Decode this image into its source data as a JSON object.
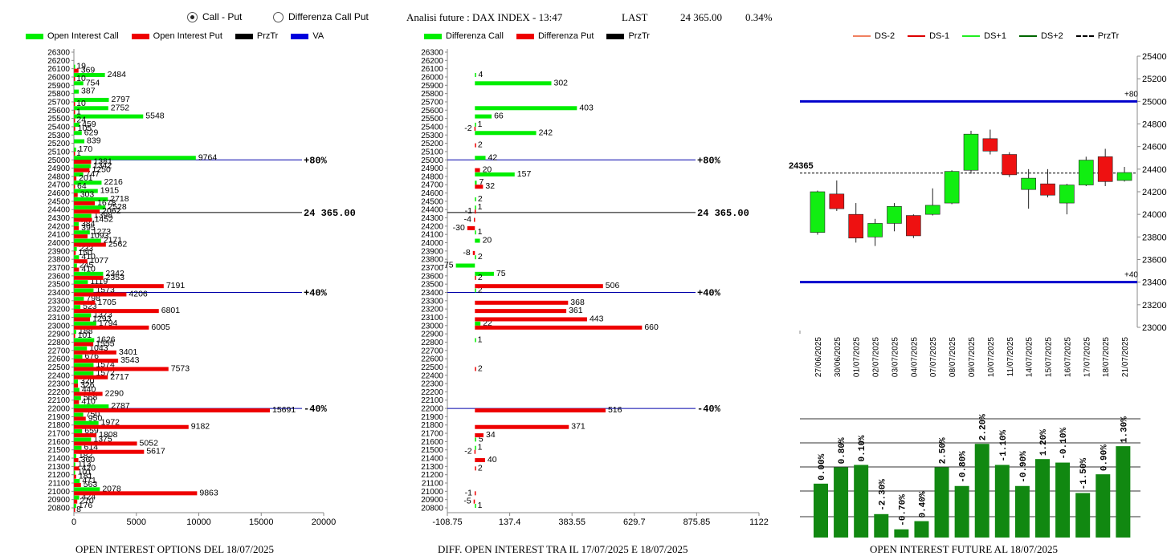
{
  "header": {
    "radio_call_put": "Call - Put",
    "radio_diff": "Differenza Call Put",
    "analysis_title": "Analisi future : DAX INDEX - 13:47",
    "last_label": "LAST",
    "last_value": "24 365.00",
    "last_change": "0.34%"
  },
  "legends": {
    "left": [
      {
        "label": "Open Interest Call",
        "color": "#00ee00",
        "kind": "box"
      },
      {
        "label": "Open Interest Put",
        "color": "#ee0000",
        "kind": "box"
      },
      {
        "label": "PrzTr",
        "color": "#000000",
        "kind": "box"
      },
      {
        "label": "VA",
        "color": "#0000dd",
        "kind": "box"
      }
    ],
    "middle": [
      {
        "label": "Differenza Call",
        "color": "#00ee00",
        "kind": "box"
      },
      {
        "label": "Differenza Put",
        "color": "#ee0000",
        "kind": "box"
      },
      {
        "label": "PrzTr",
        "color": "#000000",
        "kind": "box"
      }
    ],
    "right": [
      {
        "label": "DS-2",
        "color": "#f08060",
        "kind": "line"
      },
      {
        "label": "DS-1",
        "color": "#dd0000",
        "kind": "line"
      },
      {
        "label": "DS+1",
        "color": "#22ee22",
        "kind": "line"
      },
      {
        "label": "DS+2",
        "color": "#006600",
        "kind": "line"
      },
      {
        "label": "PrzTr",
        "color": "#000000",
        "kind": "dash"
      }
    ]
  },
  "footers": {
    "left": "OPEN INTEREST OPTIONS DEL 18/07/2025",
    "middle": "DIFF. OPEN INTEREST TRA IL 17/07/2025 E 18/07/2025",
    "right": "OPEN INTEREST FUTURE AL 18/07/2025"
  },
  "chart_data": [
    {
      "type": "bar",
      "orientation": "horizontal",
      "y_categories": [
        26300,
        26200,
        26100,
        26000,
        25900,
        25800,
        25700,
        25600,
        25500,
        25400,
        25300,
        25200,
        25100,
        25000,
        24900,
        24800,
        24700,
        24600,
        24500,
        24400,
        24300,
        24200,
        24100,
        24000,
        23900,
        23800,
        23700,
        23600,
        23500,
        23400,
        23300,
        23200,
        23100,
        23000,
        22900,
        22800,
        22700,
        22600,
        22500,
        22400,
        22300,
        22200,
        22100,
        22000,
        21900,
        21800,
        21700,
        21600,
        21500,
        21400,
        21300,
        21200,
        21100,
        21000,
        20900,
        20800
      ],
      "xlim": [
        0,
        20000
      ],
      "xticks": [
        "0",
        "5000",
        "10000",
        "15000",
        "20000"
      ],
      "series": [
        {
          "name": "Open Interest Call",
          "color": "#00ee00",
          "points": [
            [
              26100,
              19
            ],
            [
              26000,
              2484
            ],
            [
              25900,
              754
            ],
            [
              25800,
              387
            ],
            [
              25700,
              2797
            ],
            [
              25600,
              2752
            ],
            [
              25500,
              5548
            ],
            [
              25400,
              459
            ],
            [
              25300,
              629
            ],
            [
              25200,
              839
            ],
            [
              25100,
              170
            ],
            [
              25000,
              9764
            ],
            [
              24900,
              1342
            ],
            [
              24800,
              747
            ],
            [
              24700,
              2216
            ],
            [
              24600,
              1915
            ],
            [
              24500,
              2718
            ],
            [
              24400,
              2528
            ],
            [
              24300,
              1398
            ],
            [
              24200,
              384
            ],
            [
              24100,
              1273
            ],
            [
              24000,
              2171
            ],
            [
              23900,
              233
            ],
            [
              23800,
              410
            ],
            [
              23700,
              245
            ],
            [
              23600,
              2342
            ],
            [
              23500,
              1119
            ],
            [
              23400,
              1573
            ],
            [
              23300,
              798
            ],
            [
              23200,
              523
            ],
            [
              23100,
              1373
            ],
            [
              23000,
              1794
            ],
            [
              22900,
              188
            ],
            [
              22800,
              1626
            ],
            [
              22700,
              1043
            ],
            [
              22600,
              676
            ],
            [
              22500,
              1574
            ],
            [
              22400,
              1572
            ],
            [
              22300,
              320
            ],
            [
              22200,
              440
            ],
            [
              22100,
              568
            ],
            [
              22000,
              2787
            ],
            [
              21900,
              750
            ],
            [
              21800,
              1972
            ],
            [
              21700,
              659
            ],
            [
              21600,
              1375
            ],
            [
              21500,
              614
            ],
            [
              21400,
              182
            ],
            [
              21300,
              113
            ],
            [
              21200,
              101
            ],
            [
              21100,
              471
            ],
            [
              21000,
              2078
            ],
            [
              20900,
              424
            ],
            [
              20800,
              176
            ]
          ]
        },
        {
          "name": "Open Interest Put",
          "color": "#ee0000",
          "points": [
            [
              26100,
              369
            ],
            [
              26000,
              10
            ],
            [
              25700,
              10
            ],
            [
              25600,
              1
            ],
            [
              25500,
              24
            ],
            [
              25400,
              105
            ],
            [
              25100,
              1
            ],
            [
              25000,
              1381
            ],
            [
              24900,
              1250
            ],
            [
              24800,
              201
            ],
            [
              24700,
              64
            ],
            [
              24600,
              303
            ],
            [
              24500,
              1678
            ],
            [
              24400,
              2062
            ],
            [
              24300,
              1452
            ],
            [
              24200,
              395
            ],
            [
              24100,
              1093
            ],
            [
              24000,
              2562
            ],
            [
              23900,
              150
            ],
            [
              23800,
              1077
            ],
            [
              23700,
              410
            ],
            [
              23600,
              2353
            ],
            [
              23500,
              7191
            ],
            [
              23400,
              4206
            ],
            [
              23300,
              1705
            ],
            [
              23200,
              6801
            ],
            [
              23100,
              1293
            ],
            [
              23000,
              6005
            ],
            [
              22900,
              101
            ],
            [
              22800,
              1555
            ],
            [
              22700,
              3401
            ],
            [
              22600,
              3543
            ],
            [
              22500,
              7573
            ],
            [
              22400,
              2717
            ],
            [
              22300,
              326
            ],
            [
              22200,
              2290
            ],
            [
              22100,
              410
            ],
            [
              22000,
              15691
            ],
            [
              21900,
              950
            ],
            [
              21800,
              9182
            ],
            [
              21700,
              1808
            ],
            [
              21600,
              5052
            ],
            [
              21500,
              5617
            ],
            [
              21400,
              360
            ],
            [
              21300,
              420
            ],
            [
              21200,
              181
            ],
            [
              21100,
              563
            ],
            [
              21000,
              9863
            ],
            [
              20900,
              270
            ],
            [
              20800,
              8
            ]
          ]
        }
      ],
      "reference_lines": [
        {
          "y": 25000,
          "label": "+80%",
          "color": "#0000aa"
        },
        {
          "y": 24365,
          "label": "24 365.00",
          "color": "#000000"
        },
        {
          "y": 23400,
          "label": "+40%",
          "color": "#0000aa"
        },
        {
          "y": 22000,
          "label": "-40%",
          "color": "#0000aa"
        }
      ]
    },
    {
      "type": "bar",
      "orientation": "horizontal",
      "y_categories": [
        26300,
        26200,
        26100,
        26000,
        25900,
        25800,
        25700,
        25600,
        25500,
        25400,
        25300,
        25200,
        25100,
        25000,
        24900,
        24800,
        24700,
        24600,
        24500,
        24400,
        24300,
        24200,
        24100,
        24000,
        23900,
        23800,
        23700,
        23600,
        23500,
        23400,
        23300,
        23200,
        23100,
        23000,
        22900,
        22800,
        22700,
        22600,
        22500,
        22400,
        22300,
        22200,
        22100,
        22000,
        21900,
        21800,
        21700,
        21600,
        21500,
        21400,
        21300,
        21200,
        21100,
        21000,
        20900,
        20800
      ],
      "xlim": [
        -108.75,
        1122
      ],
      "xticks": [
        "-108.75",
        "137.4",
        "383.55",
        "629.7",
        "875.85",
        "1122"
      ],
      "series": [
        {
          "name": "Differenza Call",
          "color": "#00ee00",
          "points": [
            [
              26000,
              4
            ],
            [
              25900,
              302
            ],
            [
              25600,
              403
            ],
            [
              25500,
              66
            ],
            [
              25400,
              1
            ],
            [
              25300,
              242
            ],
            [
              25000,
              42
            ],
            [
              24800,
              157
            ],
            [
              24700,
              7
            ],
            [
              24500,
              2
            ],
            [
              24400,
              1
            ],
            [
              24100,
              1
            ],
            [
              24000,
              20
            ],
            [
              23800,
              2
            ],
            [
              23700,
              -75
            ],
            [
              23600,
              75
            ],
            [
              23400,
              2
            ],
            [
              23000,
              22
            ],
            [
              22800,
              1
            ],
            [
              21600,
              5
            ],
            [
              21500,
              1
            ],
            [
              20800,
              1
            ]
          ]
        },
        {
          "name": "Differenza Put",
          "color": "#ee0000",
          "points": [
            [
              25400,
              -2
            ],
            [
              25200,
              2
            ],
            [
              24900,
              20
            ],
            [
              24700,
              32
            ],
            [
              24400,
              -1
            ],
            [
              24300,
              -4
            ],
            [
              24200,
              -30
            ],
            [
              23900,
              -8
            ],
            [
              23600,
              2
            ],
            [
              23500,
              506
            ],
            [
              23300,
              368
            ],
            [
              23200,
              361
            ],
            [
              23100,
              443
            ],
            [
              23000,
              660
            ],
            [
              22500,
              2
            ],
            [
              22000,
              516
            ],
            [
              21800,
              371
            ],
            [
              21700,
              34
            ],
            [
              21500,
              -2
            ],
            [
              21400,
              40
            ],
            [
              21300,
              2
            ],
            [
              21000,
              -1
            ],
            [
              20900,
              -5
            ]
          ]
        }
      ],
      "reference_lines": [
        {
          "y": 25000,
          "label": "+80%",
          "color": "#0000aa"
        },
        {
          "y": 24365,
          "label": "24 365.00",
          "color": "#000000"
        },
        {
          "y": 23400,
          "label": "+40%",
          "color": "#0000aa"
        },
        {
          "y": 22000,
          "label": "-40%",
          "color": "#0000aa"
        }
      ]
    },
    {
      "type": "candlestick",
      "ylim": [
        23000,
        25400
      ],
      "yticks": [
        23000,
        23200,
        23400,
        23600,
        23800,
        24000,
        24200,
        24400,
        24600,
        24800,
        25000,
        25200,
        25400
      ],
      "dates": [
        "27/06/2025",
        "30/06/2025",
        "01/07/2025",
        "02/07/2025",
        "03/07/2025",
        "04/07/2025",
        "07/07/2025",
        "08/07/2025",
        "09/07/2025",
        "10/07/2025",
        "11/07/2025",
        "14/07/2025",
        "15/07/2025",
        "16/07/2025",
        "17/07/2025",
        "18/07/2025",
        "21/07/2025"
      ],
      "ohlc": [
        {
          "o": 23840,
          "h": 24210,
          "l": 23820,
          "c": 24200
        },
        {
          "o": 24180,
          "h": 24300,
          "l": 24030,
          "c": 24050
        },
        {
          "o": 24000,
          "h": 24100,
          "l": 23750,
          "c": 23790
        },
        {
          "o": 23800,
          "h": 23960,
          "l": 23720,
          "c": 23920
        },
        {
          "o": 23920,
          "h": 24100,
          "l": 23850,
          "c": 24070
        },
        {
          "o": 23990,
          "h": 24000,
          "l": 23790,
          "c": 23810
        },
        {
          "o": 24000,
          "h": 24230,
          "l": 23990,
          "c": 24080
        },
        {
          "o": 24100,
          "h": 24390,
          "l": 24090,
          "c": 24380
        },
        {
          "o": 24390,
          "h": 24740,
          "l": 24360,
          "c": 24710
        },
        {
          "o": 24670,
          "h": 24750,
          "l": 24530,
          "c": 24560
        },
        {
          "o": 24530,
          "h": 24550,
          "l": 24330,
          "c": 24350
        },
        {
          "o": 24220,
          "h": 24400,
          "l": 24050,
          "c": 24320
        },
        {
          "o": 24270,
          "h": 24400,
          "l": 24150,
          "c": 24170
        },
        {
          "o": 24100,
          "h": 24270,
          "l": 24000,
          "c": 24260
        },
        {
          "o": 24260,
          "h": 24510,
          "l": 24250,
          "c": 24480
        },
        {
          "o": 24510,
          "h": 24580,
          "l": 24250,
          "c": 24290
        },
        {
          "o": 24300,
          "h": 24420,
          "l": 24290,
          "c": 24370
        }
      ],
      "hlines": [
        {
          "y": 25000,
          "label": "+80",
          "color": "#0000cc"
        },
        {
          "y": 24365,
          "label": "24365",
          "color": "#000000",
          "dashed": true
        },
        {
          "y": 23400,
          "label": "+40",
          "color": "#0000cc"
        }
      ]
    },
    {
      "type": "bar",
      "categories": [
        "27/06/2025",
        "30/06/2025",
        "01/07/2025",
        "02/07/2025",
        "03/07/2025",
        "04/07/2025",
        "07/07/2025",
        "08/07/2025",
        "09/07/2025",
        "10/07/2025",
        "11/07/2025",
        "14/07/2025",
        "15/07/2025",
        "16/07/2025",
        "17/07/2025",
        "18/07/2025",
        "21/07/2025"
      ],
      "labels": [
        "0.00%",
        "0.80%",
        "0.10%",
        "-2.30%",
        "-0.70%",
        "0.40%",
        "2.50%",
        "-0.80%",
        "2.20%",
        "-1.10%",
        "-0.90%",
        "1.20%",
        "-0.10%",
        "-1.50%",
        "0.90%",
        "1.30%"
      ],
      "relative_heights": [
        0.46,
        0.6,
        0.62,
        0.2,
        0.07,
        0.14,
        0.6,
        0.44,
        0.8,
        0.62,
        0.44,
        0.67,
        0.64,
        0.38,
        0.54,
        0.78
      ],
      "color": "#118811"
    }
  ]
}
